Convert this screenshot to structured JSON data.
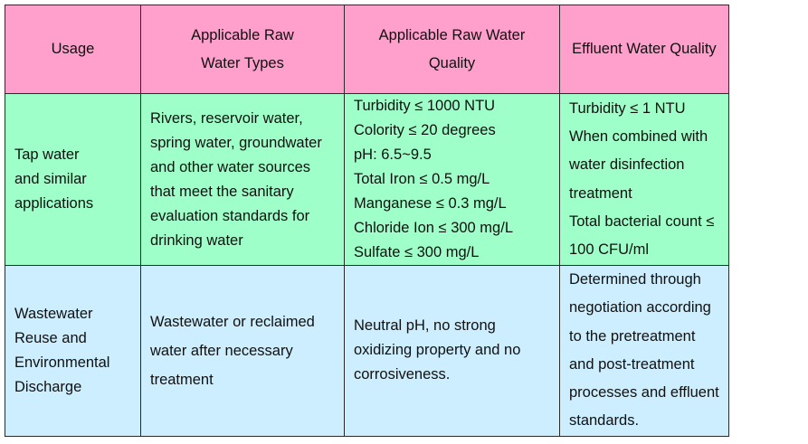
{
  "table": {
    "headers": [
      [
        "Usage"
      ],
      [
        "Applicable Raw",
        "Water Types"
      ],
      [
        "Applicable Raw Water",
        "Quality"
      ],
      [
        "Effluent Water Quality"
      ]
    ],
    "rows": [
      {
        "usage": [
          "Tap water",
          "and similar",
          "applications"
        ],
        "raw_water_types": [
          "Rivers, reservoir water,",
          "spring water, groundwater",
          "and other water sources",
          "that meet the sanitary",
          "evaluation standards for",
          "drinking water"
        ],
        "raw_water_quality": [
          "Turbidity ≤ 1000 NTU",
          "Colority ≤ 20 degrees",
          "pH: 6.5~9.5",
          "Total Iron ≤ 0.5 mg/L",
          "Manganese ≤ 0.3 mg/L",
          "Chloride Ion ≤ 300 mg/L",
          "Sulfate ≤ 300 mg/L"
        ],
        "effluent_quality": [
          "Turbidity ≤ 1 NTU",
          "When combined with",
          "water disinfection",
          "treatment",
          "Total bacterial count ≤",
          "100 CFU/ml"
        ]
      },
      {
        "usage": [
          "Wastewater",
          "Reuse and",
          "Environmental",
          "Discharge"
        ],
        "raw_water_types": [
          "Wastewater or reclaimed",
          "water after necessary",
          "treatment"
        ],
        "raw_water_quality": [
          "Neutral pH, no strong",
          "oxidizing property and no",
          "corrosiveness."
        ],
        "effluent_quality": [
          "Determined through",
          "negotiation according",
          "to the pretreatment",
          "and post-treatment",
          "processes and effluent",
          "standards."
        ]
      }
    ]
  }
}
